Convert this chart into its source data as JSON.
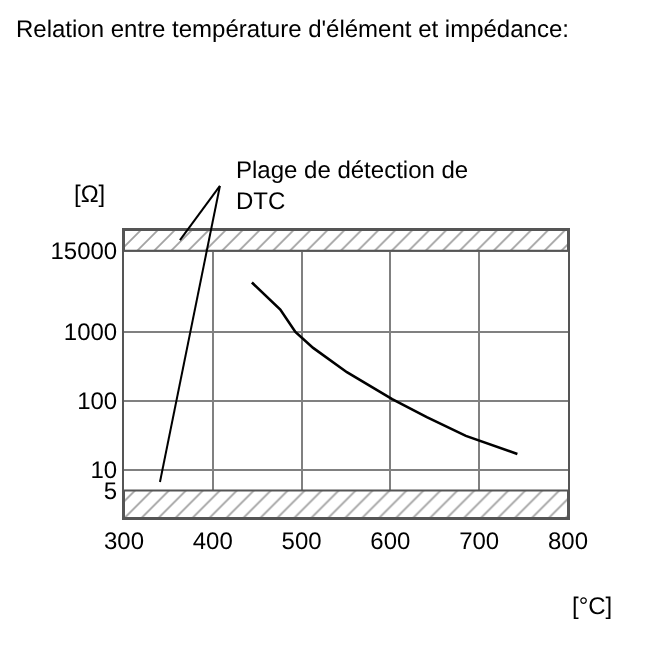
{
  "chart_data": {
    "type": "line",
    "title": "Relation entre température d'élément et impédance:",
    "xlabel": "[°C]",
    "ylabel": "[Ω]",
    "log": "y",
    "x": [
      444,
      476,
      493,
      513,
      551,
      602,
      641,
      685,
      743
    ],
    "series": [
      {
        "color": "#000000",
        "values": [
          5200,
          2100,
          1000,
          585,
          260,
          106,
          58,
          31,
          17
        ]
      }
    ],
    "xlim": [
      300,
      800
    ],
    "xticks": [
      300,
      400,
      500,
      600,
      700,
      800
    ],
    "ylim": [
      2,
      30000
    ],
    "yticks": [
      5,
      10,
      100,
      1000,
      15000
    ],
    "grid": true,
    "marker": "none",
    "line_style": "solid",
    "bands": [
      {
        "axis": "y",
        "from": 15000,
        "to": 30000,
        "label": "Plage de détection de DTC",
        "color": "#444444"
      },
      {
        "axis": "y",
        "from": 2,
        "to": 5,
        "color": "#444444"
      }
    ]
  }
}
